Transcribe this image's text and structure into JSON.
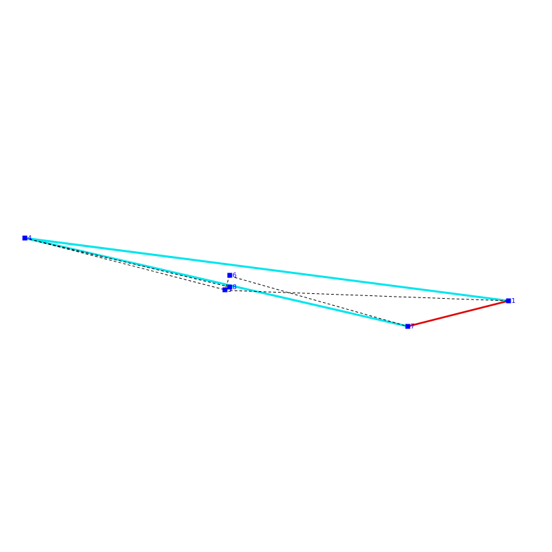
{
  "nodes": [
    {
      "label": "1"
    },
    {
      "label": "4"
    },
    {
      "label": "6"
    },
    {
      "label": "7"
    },
    {
      "label": "8"
    },
    {
      "label": "5"
    }
  ]
}
